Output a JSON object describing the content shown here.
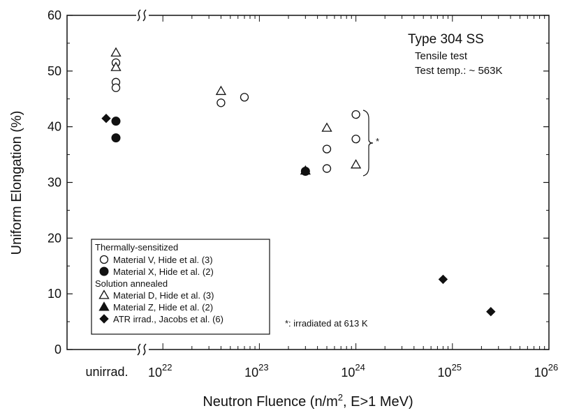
{
  "chart_data": {
    "type": "scatter",
    "xlabel": "Neutron Fluence (n/m², E>1 MeV)",
    "ylabel": "Uniform Elongation (%)",
    "x_scale": "log",
    "xlim": [
      1e+21,
      1e+26
    ],
    "ylim": [
      0,
      60
    ],
    "y_ticks": [
      0,
      10,
      20,
      30,
      40,
      50,
      60
    ],
    "x_ticks": [
      {
        "value": 1e+22,
        "base": "10",
        "exp": "22"
      },
      {
        "value": 1e+23,
        "base": "10",
        "exp": "23"
      },
      {
        "value": 1e+24,
        "base": "10",
        "exp": "24"
      },
      {
        "value": 1e+25,
        "base": "10",
        "exp": "25"
      },
      {
        "value": 1e+26,
        "base": "10",
        "exp": "26"
      }
    ],
    "unirradiated_label": "unirrad.",
    "axis_break": "≈",
    "annotation": {
      "title": "Type 304 SS",
      "line1": "Tensile test",
      "line2": "Test temp.: ~ 563K"
    },
    "bracket_marker": "*",
    "footnote": "*:  irradiated at 613 K",
    "legend": {
      "groups": [
        {
          "heading": "Thermally-sensitized",
          "entries": [
            {
              "marker": "open-circle",
              "label": "Material V, Hide et al. (3)"
            },
            {
              "marker": "filled-circle",
              "label": "Material X, Hide et al. (2)"
            }
          ]
        },
        {
          "heading": "Solution annealed",
          "entries": [
            {
              "marker": "open-triangle",
              "label": "Material D, Hide et al. (3)"
            },
            {
              "marker": "filled-triangle",
              "label": "Material Z, Hide et al. (2)"
            },
            {
              "marker": "filled-diamond",
              "label": "ATR irrad., Jacobs et al. (6)"
            }
          ]
        }
      ]
    },
    "series": [
      {
        "marker": "open-circle",
        "points": [
          {
            "x": "unirrad.",
            "y": 51.5
          },
          {
            "x": "unirrad.",
            "y": 48.0
          },
          {
            "x": "unirrad.",
            "y": 47.0
          },
          {
            "x": 4e+22,
            "y": 44.3
          },
          {
            "x": 7e+22,
            "y": 45.3
          },
          {
            "x": 5e+23,
            "y": 36.0
          },
          {
            "x": 5e+23,
            "y": 32.5
          },
          {
            "x": 1e+24,
            "y": 42.2
          },
          {
            "x": 1e+24,
            "y": 37.8
          }
        ]
      },
      {
        "marker": "filled-circle",
        "points": [
          {
            "x": "unirrad.",
            "y": 41.0
          },
          {
            "x": "unirrad.",
            "y": 38.0
          },
          {
            "x": 3e+23,
            "y": 32.0
          }
        ]
      },
      {
        "marker": "open-triangle",
        "points": [
          {
            "x": "unirrad.",
            "y": 53.3
          },
          {
            "x": "unirrad.",
            "y": 50.7
          },
          {
            "x": 4e+22,
            "y": 46.4
          },
          {
            "x": 5e+23,
            "y": 39.8
          },
          {
            "x": 1e+24,
            "y": 33.2
          }
        ]
      },
      {
        "marker": "filled-triangle",
        "points": [
          {
            "x": 3e+23,
            "y": 32.1
          }
        ]
      },
      {
        "marker": "filled-diamond",
        "points": [
          {
            "x": "unirrad.",
            "y": 41.5
          },
          {
            "x": 8e+24,
            "y": 12.6
          },
          {
            "x": 2.5e+25,
            "y": 6.8
          }
        ]
      }
    ]
  }
}
